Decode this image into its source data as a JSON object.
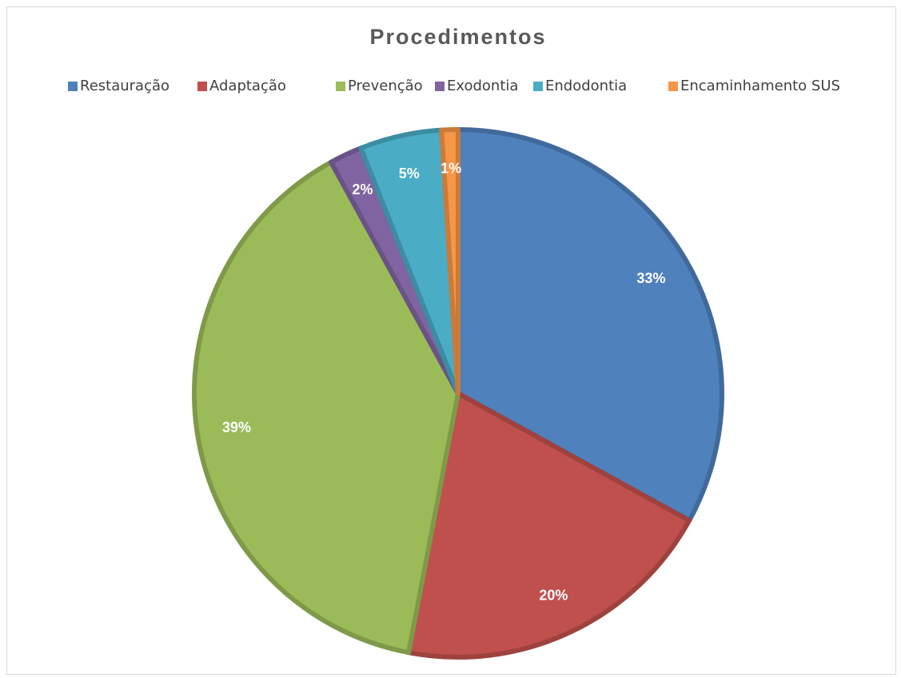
{
  "chart_data": {
    "type": "pie",
    "title": "Procedimentos",
    "categories": [
      "Restauração",
      "Adaptação",
      "Prevenção",
      "Exodontia",
      "Endodontia",
      "Encaminhamento SUS"
    ],
    "values": [
      33,
      20,
      39,
      2,
      5,
      1
    ],
    "value_labels": [
      "33%",
      "20%",
      "39%",
      "2%",
      "5%",
      "1%"
    ],
    "colors": [
      "#4f81bd",
      "#c0504d",
      "#9bbb59",
      "#8064a2",
      "#4bacc6",
      "#f79646"
    ],
    "legend": "top"
  }
}
